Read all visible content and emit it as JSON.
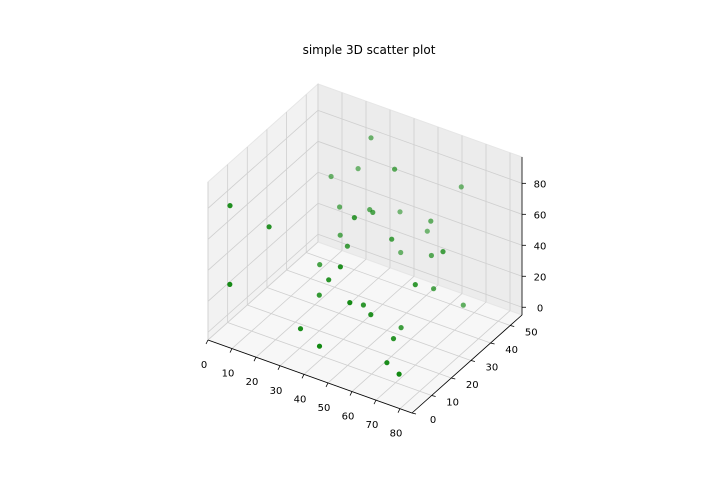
{
  "chart_data": {
    "type": "scatter",
    "title": "simple 3D scatter plot",
    "xlabel": "",
    "ylabel": "",
    "zlabel": "",
    "grid": true,
    "marker_color": "#008000",
    "x_ticks": [
      "0",
      "10",
      "20",
      "30",
      "40",
      "50",
      "60",
      "70",
      "80"
    ],
    "y_ticks": [
      "0",
      "10",
      "20",
      "30",
      "40",
      "50"
    ],
    "z_ticks": [
      "0",
      "20",
      "40",
      "60",
      "80"
    ],
    "xlim": [
      0,
      85
    ],
    "ylim": [
      0,
      56
    ],
    "zlim": [
      -5,
      97
    ],
    "points": [
      {
        "x": 1,
        "y": 10,
        "z": 71
      },
      {
        "x": 5,
        "y": 5,
        "z": 28
      },
      {
        "x": 12,
        "y": 48,
        "z": 53
      },
      {
        "x": 14,
        "y": 14,
        "z": 60
      },
      {
        "x": 18,
        "y": 45,
        "z": 40
      },
      {
        "x": 20,
        "y": 52,
        "z": 58
      },
      {
        "x": 22,
        "y": 30,
        "z": 22
      },
      {
        "x": 24,
        "y": 38,
        "z": 33
      },
      {
        "x": 27,
        "y": 50,
        "z": 84
      },
      {
        "x": 30,
        "y": 20,
        "z": 18
      },
      {
        "x": 32,
        "y": 8,
        "z": 11
      },
      {
        "x": 33,
        "y": 42,
        "z": 50
      },
      {
        "x": 35,
        "y": 55,
        "z": 35
      },
      {
        "x": 36,
        "y": 27,
        "z": 45
      },
      {
        "x": 38,
        "y": 15,
        "z": 38
      },
      {
        "x": 40,
        "y": 35,
        "z": 60
      },
      {
        "x": 41,
        "y": 48,
        "z": 20
      },
      {
        "x": 43,
        "y": 22,
        "z": 73
      },
      {
        "x": 44,
        "y": 3,
        "z": 12
      },
      {
        "x": 45,
        "y": 40,
        "z": 85
      },
      {
        "x": 47,
        "y": 10,
        "z": 57
      },
      {
        "x": 48,
        "y": 53,
        "z": 32
      },
      {
        "x": 50,
        "y": 18,
        "z": 25
      },
      {
        "x": 52,
        "y": 30,
        "z": 55
      },
      {
        "x": 55,
        "y": 5,
        "z": 44
      },
      {
        "x": 56,
        "y": 45,
        "z": 52
      },
      {
        "x": 58,
        "y": 12,
        "z": 30
      },
      {
        "x": 60,
        "y": 25,
        "z": 8
      },
      {
        "x": 62,
        "y": 38,
        "z": 41
      },
      {
        "x": 63,
        "y": 52,
        "z": 70
      },
      {
        "x": 65,
        "y": 15,
        "z": 15
      },
      {
        "x": 67,
        "y": 33,
        "z": 28
      },
      {
        "x": 68,
        "y": 8,
        "z": 9
      },
      {
        "x": 70,
        "y": 20,
        "z": 47
      },
      {
        "x": 72,
        "y": 42,
        "z": 10
      },
      {
        "x": 75,
        "y": 28,
        "z": 62
      },
      {
        "x": 78,
        "y": 2,
        "z": 14
      }
    ]
  }
}
